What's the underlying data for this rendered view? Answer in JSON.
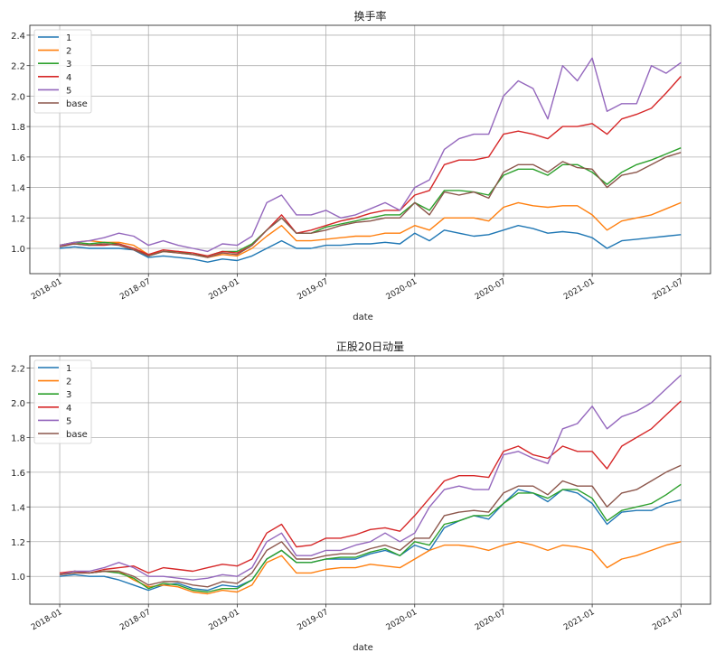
{
  "colors": {
    "1": "#1f77b4",
    "2": "#ff7f0e",
    "3": "#2ca02c",
    "4": "#d62728",
    "5": "#9467bd",
    "base": "#8c564b"
  },
  "chart_data": [
    {
      "type": "line",
      "title": "换手率",
      "xlabel": "date",
      "ylabel": "",
      "x_ticks": [
        "2018-01",
        "2018-07",
        "2019-01",
        "2019-07",
        "2020-01",
        "2020-07",
        "2021-01",
        "2021-07"
      ],
      "y_ticks": [
        "1.0",
        "1.2",
        "1.4",
        "1.6",
        "1.8",
        "2.0",
        "2.2",
        "2.4"
      ],
      "ylim": [
        0.834,
        2.465
      ],
      "grid": true,
      "legend_position": "top-left",
      "x_start": "2018-01",
      "x_step": "month",
      "series": [
        {
          "name": "1",
          "values": [
            1.0,
            1.01,
            1.0,
            1.0,
            1.0,
            0.99,
            0.94,
            0.95,
            0.94,
            0.93,
            0.91,
            0.93,
            0.92,
            0.95,
            1.0,
            1.05,
            1.0,
            1.0,
            1.02,
            1.02,
            1.03,
            1.03,
            1.04,
            1.03,
            1.1,
            1.05,
            1.12,
            1.1,
            1.08,
            1.09,
            1.12,
            1.15,
            1.13,
            1.1,
            1.11,
            1.1,
            1.07,
            1.0,
            1.05,
            1.06,
            1.07,
            1.08,
            1.09
          ]
        },
        {
          "name": "2",
          "values": [
            1.02,
            1.04,
            1.05,
            1.04,
            1.04,
            1.02,
            0.96,
            0.98,
            0.97,
            0.96,
            0.94,
            0.96,
            0.95,
            1.0,
            1.08,
            1.15,
            1.05,
            1.05,
            1.06,
            1.07,
            1.08,
            1.08,
            1.1,
            1.1,
            1.15,
            1.12,
            1.2,
            1.2,
            1.2,
            1.18,
            1.27,
            1.3,
            1.28,
            1.27,
            1.28,
            1.28,
            1.22,
            1.12,
            1.18,
            1.2,
            1.22,
            1.26,
            1.3
          ]
        },
        {
          "name": "3",
          "values": [
            1.02,
            1.04,
            1.03,
            1.04,
            1.03,
            1.0,
            0.95,
            0.98,
            0.98,
            0.96,
            0.95,
            0.98,
            0.98,
            1.03,
            1.12,
            1.2,
            1.1,
            1.1,
            1.14,
            1.16,
            1.18,
            1.2,
            1.22,
            1.22,
            1.3,
            1.25,
            1.38,
            1.38,
            1.37,
            1.35,
            1.48,
            1.52,
            1.52,
            1.48,
            1.55,
            1.55,
            1.5,
            1.42,
            1.5,
            1.55,
            1.58,
            1.62,
            1.66
          ]
        },
        {
          "name": "4",
          "values": [
            1.02,
            1.03,
            1.02,
            1.02,
            1.03,
            1.0,
            0.96,
            0.99,
            0.98,
            0.97,
            0.95,
            0.98,
            0.97,
            1.02,
            1.12,
            1.22,
            1.1,
            1.12,
            1.15,
            1.18,
            1.2,
            1.23,
            1.25,
            1.25,
            1.35,
            1.38,
            1.55,
            1.58,
            1.58,
            1.6,
            1.75,
            1.77,
            1.75,
            1.72,
            1.8,
            1.8,
            1.82,
            1.75,
            1.85,
            1.88,
            1.92,
            2.02,
            2.13
          ]
        },
        {
          "name": "5",
          "values": [
            1.02,
            1.04,
            1.05,
            1.07,
            1.1,
            1.08,
            1.02,
            1.05,
            1.02,
            1.0,
            0.98,
            1.03,
            1.02,
            1.08,
            1.3,
            1.35,
            1.22,
            1.22,
            1.25,
            1.2,
            1.22,
            1.26,
            1.3,
            1.25,
            1.4,
            1.45,
            1.65,
            1.72,
            1.75,
            1.75,
            2.0,
            2.1,
            2.05,
            1.85,
            2.2,
            2.1,
            2.25,
            1.9,
            1.95,
            1.95,
            2.2,
            2.15,
            2.22
          ]
        },
        {
          "name": "base",
          "values": [
            1.01,
            1.03,
            1.02,
            1.03,
            1.02,
            0.99,
            0.95,
            0.98,
            0.97,
            0.96,
            0.94,
            0.97,
            0.96,
            1.02,
            1.12,
            1.2,
            1.1,
            1.1,
            1.12,
            1.15,
            1.17,
            1.18,
            1.2,
            1.2,
            1.3,
            1.22,
            1.37,
            1.35,
            1.37,
            1.33,
            1.5,
            1.55,
            1.55,
            1.5,
            1.57,
            1.53,
            1.52,
            1.4,
            1.48,
            1.5,
            1.55,
            1.6,
            1.63
          ]
        }
      ]
    },
    {
      "type": "line",
      "title": "正股20日动量",
      "xlabel": "date",
      "ylabel": "",
      "x_ticks": [
        "2018-01",
        "2018-07",
        "2019-01",
        "2019-07",
        "2020-01",
        "2020-07",
        "2021-01",
        "2021-07"
      ],
      "y_ticks": [
        "1.0",
        "1.2",
        "1.4",
        "1.6",
        "1.8",
        "2.0",
        "2.2"
      ],
      "ylim": [
        0.84,
        2.27
      ],
      "grid": true,
      "legend_position": "top-left",
      "x_start": "2018-01",
      "x_step": "month",
      "series": [
        {
          "name": "1",
          "values": [
            1.0,
            1.01,
            1.0,
            1.0,
            0.98,
            0.95,
            0.92,
            0.95,
            0.96,
            0.93,
            0.92,
            0.95,
            0.94,
            0.98,
            1.1,
            1.15,
            1.08,
            1.08,
            1.1,
            1.1,
            1.1,
            1.13,
            1.15,
            1.12,
            1.18,
            1.15,
            1.28,
            1.32,
            1.35,
            1.33,
            1.42,
            1.5,
            1.48,
            1.43,
            1.5,
            1.48,
            1.42,
            1.3,
            1.37,
            1.38,
            1.38,
            1.42,
            1.44
          ]
        },
        {
          "name": "2",
          "values": [
            1.01,
            1.02,
            1.02,
            1.03,
            1.03,
            0.98,
            0.94,
            0.95,
            0.94,
            0.91,
            0.9,
            0.92,
            0.91,
            0.95,
            1.08,
            1.12,
            1.02,
            1.02,
            1.04,
            1.05,
            1.05,
            1.07,
            1.06,
            1.05,
            1.1,
            1.15,
            1.18,
            1.18,
            1.17,
            1.15,
            1.18,
            1.2,
            1.18,
            1.15,
            1.18,
            1.17,
            1.15,
            1.05,
            1.1,
            1.12,
            1.15,
            1.18,
            1.2
          ]
        },
        {
          "name": "3",
          "values": [
            1.01,
            1.03,
            1.02,
            1.03,
            1.02,
            0.99,
            0.93,
            0.96,
            0.95,
            0.92,
            0.91,
            0.93,
            0.93,
            0.98,
            1.1,
            1.15,
            1.08,
            1.08,
            1.1,
            1.11,
            1.11,
            1.14,
            1.16,
            1.12,
            1.2,
            1.18,
            1.3,
            1.32,
            1.35,
            1.35,
            1.42,
            1.48,
            1.48,
            1.45,
            1.5,
            1.5,
            1.45,
            1.32,
            1.38,
            1.4,
            1.42,
            1.47,
            1.53
          ]
        },
        {
          "name": "4",
          "values": [
            1.02,
            1.03,
            1.02,
            1.04,
            1.05,
            1.06,
            1.02,
            1.05,
            1.04,
            1.03,
            1.05,
            1.07,
            1.06,
            1.1,
            1.25,
            1.3,
            1.17,
            1.18,
            1.22,
            1.22,
            1.24,
            1.27,
            1.28,
            1.26,
            1.35,
            1.45,
            1.55,
            1.58,
            1.58,
            1.57,
            1.72,
            1.75,
            1.7,
            1.68,
            1.75,
            1.72,
            1.72,
            1.62,
            1.75,
            1.8,
            1.85,
            1.93,
            2.01
          ]
        },
        {
          "name": "5",
          "values": [
            1.01,
            1.03,
            1.03,
            1.05,
            1.08,
            1.05,
            1.0,
            1.0,
            0.99,
            0.98,
            0.99,
            1.01,
            1.0,
            1.05,
            1.2,
            1.25,
            1.12,
            1.12,
            1.15,
            1.15,
            1.18,
            1.2,
            1.25,
            1.2,
            1.25,
            1.4,
            1.5,
            1.52,
            1.5,
            1.5,
            1.7,
            1.72,
            1.68,
            1.65,
            1.85,
            1.88,
            1.98,
            1.85,
            1.92,
            1.95,
            2.0,
            2.08,
            2.16
          ]
        },
        {
          "name": "base",
          "values": [
            1.01,
            1.02,
            1.02,
            1.03,
            1.03,
            1.0,
            0.95,
            0.97,
            0.97,
            0.95,
            0.94,
            0.97,
            0.96,
            1.02,
            1.15,
            1.2,
            1.1,
            1.1,
            1.12,
            1.13,
            1.13,
            1.16,
            1.18,
            1.15,
            1.22,
            1.22,
            1.35,
            1.37,
            1.38,
            1.37,
            1.48,
            1.52,
            1.52,
            1.47,
            1.55,
            1.52,
            1.52,
            1.4,
            1.48,
            1.5,
            1.55,
            1.6,
            1.64
          ]
        }
      ]
    }
  ]
}
